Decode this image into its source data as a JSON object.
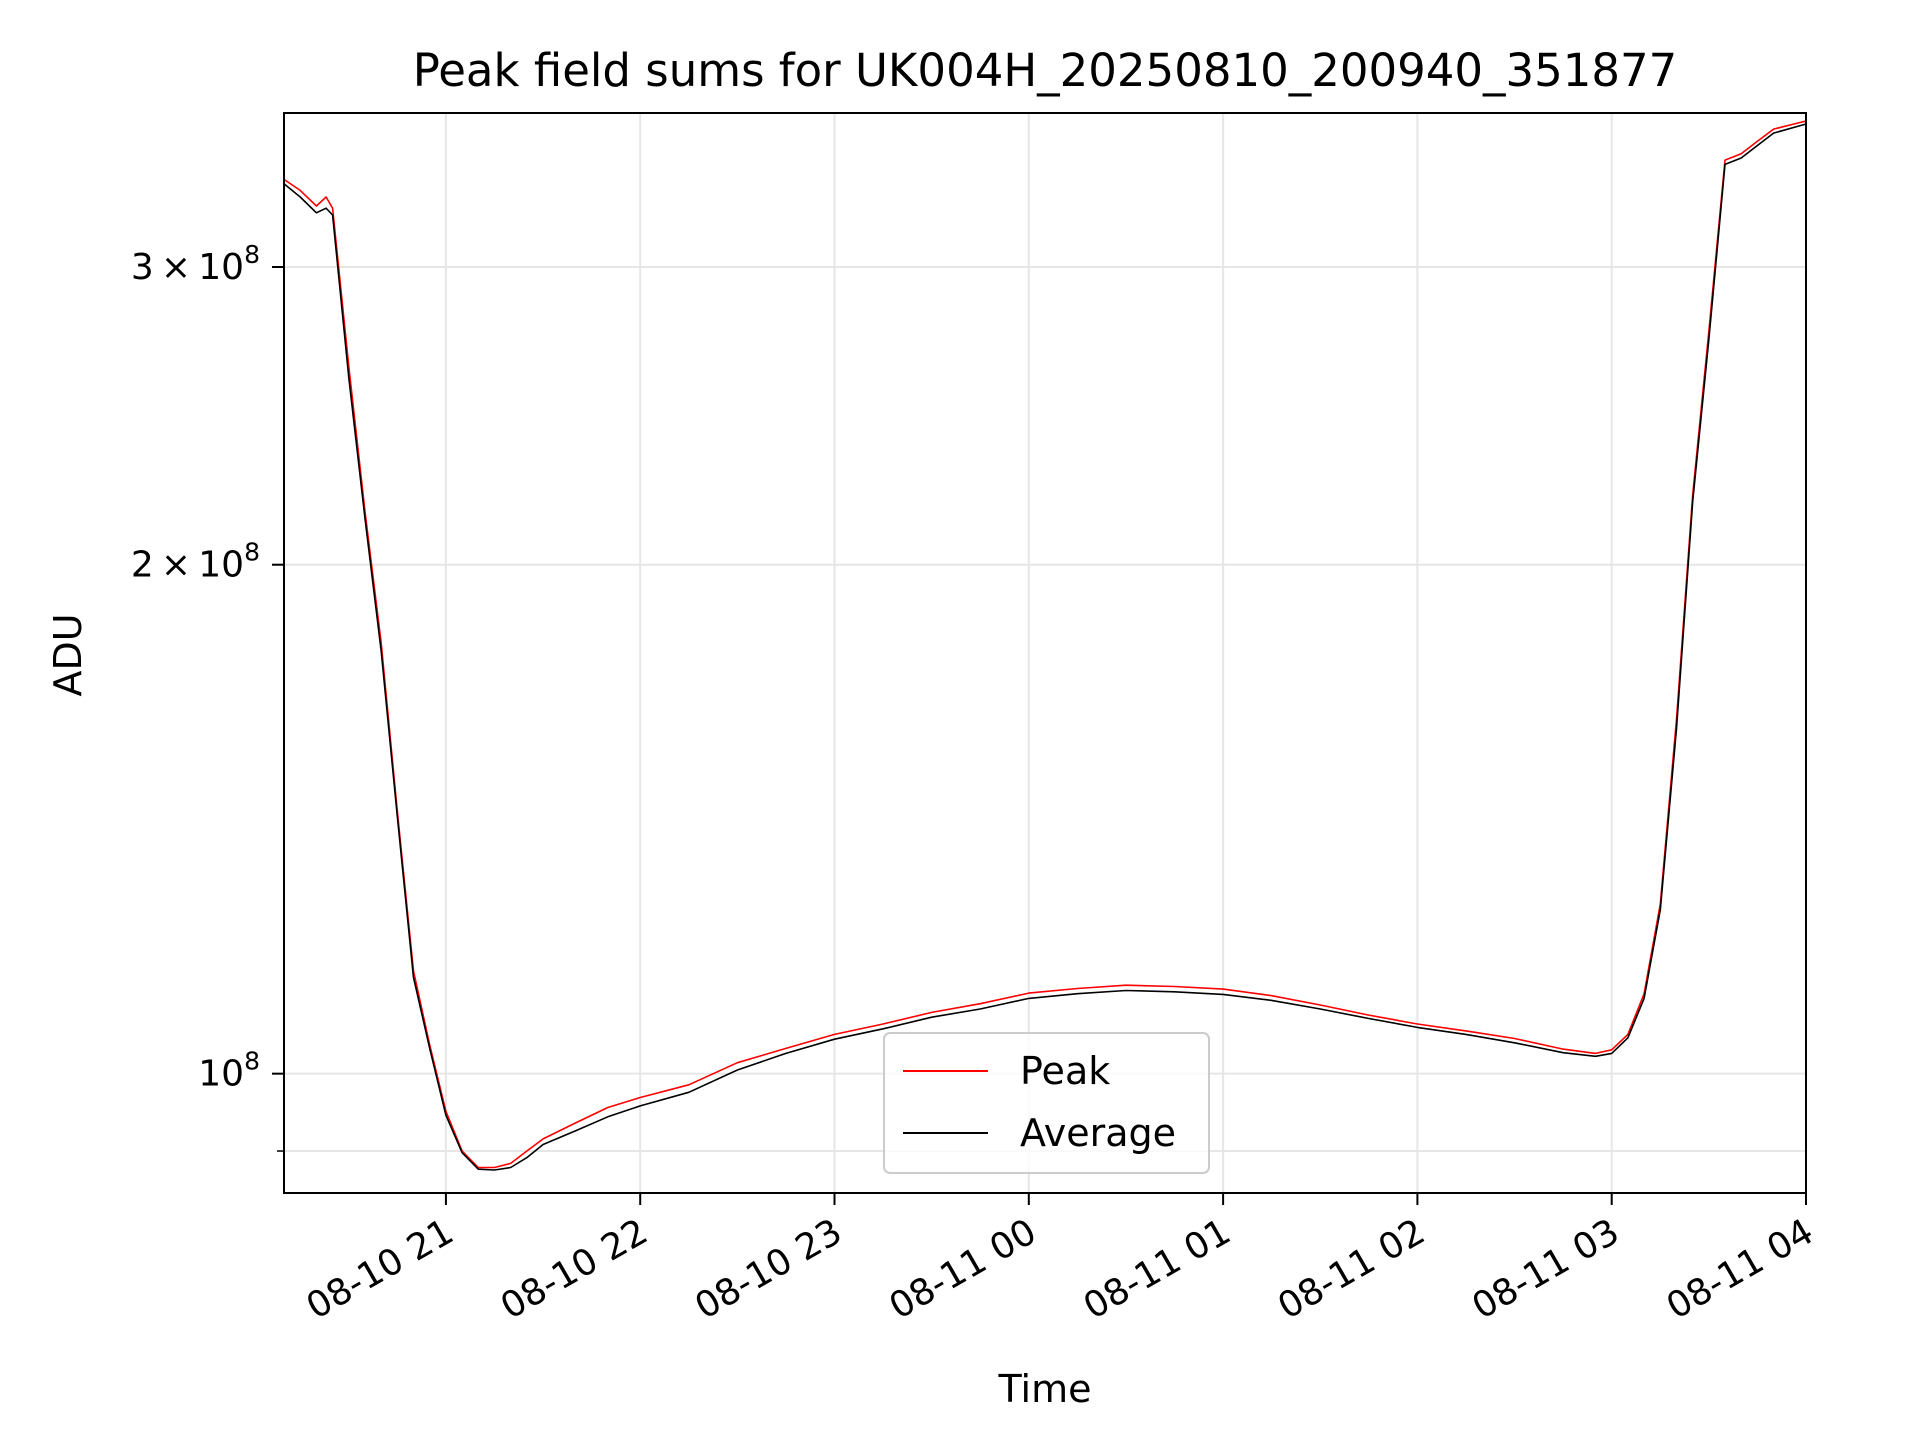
{
  "chart_data": {
    "type": "line",
    "title": "Peak field sums for UK004H_20250810_200940_351877",
    "xlabel": "Time",
    "ylabel": "ADU",
    "y_scale": "log",
    "grid": true,
    "legend_placement": "lower-center",
    "xlim": [
      "2025-08-10 20:10",
      "2025-08-11 04:00"
    ],
    "ylim": [
      85000000,
      370000000
    ],
    "x_ticks": [
      {
        "t": "2025-08-10 21:00",
        "label": "08-10 21"
      },
      {
        "t": "2025-08-10 22:00",
        "label": "08-10 22"
      },
      {
        "t": "2025-08-10 23:00",
        "label": "08-10 23"
      },
      {
        "t": "2025-08-11 00:00",
        "label": "08-11 00"
      },
      {
        "t": "2025-08-11 01:00",
        "label": "08-11 01"
      },
      {
        "t": "2025-08-11 02:00",
        "label": "08-11 02"
      },
      {
        "t": "2025-08-11 03:00",
        "label": "08-11 03"
      },
      {
        "t": "2025-08-11 04:00",
        "label": "08-11 04"
      }
    ],
    "y_major_ticks": [
      {
        "value": 100000000,
        "mantissa": "",
        "exponent": "8"
      },
      {
        "value": 200000000,
        "mantissa": "2",
        "exponent": "8"
      },
      {
        "value": 300000000,
        "mantissa": "3",
        "exponent": "8"
      }
    ],
    "y_minor_ticks": [
      90000000
    ],
    "series": [
      {
        "name": "Peak",
        "color": "#ff0000",
        "points": [
          [
            "2025-08-10 20:10",
            338000000
          ],
          [
            "2025-08-10 20:15",
            333000000
          ],
          [
            "2025-08-10 20:20",
            326000000
          ],
          [
            "2025-08-10 20:23",
            330000000
          ],
          [
            "2025-08-10 20:25",
            325000000
          ],
          [
            "2025-08-10 20:30",
            262000000
          ],
          [
            "2025-08-10 20:35",
            215000000
          ],
          [
            "2025-08-10 20:40",
            180000000
          ],
          [
            "2025-08-10 20:45",
            143000000
          ],
          [
            "2025-08-10 20:50",
            115000000
          ],
          [
            "2025-08-10 20:55",
            104000000
          ],
          [
            "2025-08-10 21:00",
            95000000
          ],
          [
            "2025-08-10 21:05",
            90000000
          ],
          [
            "2025-08-10 21:10",
            88000000
          ],
          [
            "2025-08-10 21:15",
            88000000
          ],
          [
            "2025-08-10 21:20",
            88500000
          ],
          [
            "2025-08-10 21:25",
            90000000
          ],
          [
            "2025-08-10 21:30",
            91500000
          ],
          [
            "2025-08-10 21:40",
            93500000
          ],
          [
            "2025-08-10 21:50",
            95500000
          ],
          [
            "2025-08-10 22:00",
            96800000
          ],
          [
            "2025-08-10 22:15",
            98500000
          ],
          [
            "2025-08-10 22:30",
            101500000
          ],
          [
            "2025-08-10 22:45",
            103500000
          ],
          [
            "2025-08-10 23:00",
            105500000
          ],
          [
            "2025-08-10 23:15",
            107000000
          ],
          [
            "2025-08-10 23:30",
            108700000
          ],
          [
            "2025-08-10 23:45",
            110000000
          ],
          [
            "2025-08-11 00:00",
            111600000
          ],
          [
            "2025-08-11 00:15",
            112300000
          ],
          [
            "2025-08-11 00:30",
            112800000
          ],
          [
            "2025-08-11 00:45",
            112600000
          ],
          [
            "2025-08-11 01:00",
            112200000
          ],
          [
            "2025-08-11 01:15",
            111200000
          ],
          [
            "2025-08-11 01:30",
            109800000
          ],
          [
            "2025-08-11 01:45",
            108300000
          ],
          [
            "2025-08-11 02:00",
            107000000
          ],
          [
            "2025-08-11 02:15",
            106000000
          ],
          [
            "2025-08-11 02:30",
            104900000
          ],
          [
            "2025-08-11 02:45",
            103400000
          ],
          [
            "2025-08-11 02:55",
            102800000
          ],
          [
            "2025-08-11 03:00",
            103300000
          ],
          [
            "2025-08-11 03:05",
            105500000
          ],
          [
            "2025-08-11 03:10",
            111500000
          ],
          [
            "2025-08-11 03:15",
            126000000
          ],
          [
            "2025-08-11 03:20",
            162000000
          ],
          [
            "2025-08-11 03:25",
            220000000
          ],
          [
            "2025-08-11 03:30",
            275000000
          ],
          [
            "2025-08-11 03:35",
            347000000
          ],
          [
            "2025-08-11 03:40",
            350000000
          ],
          [
            "2025-08-11 03:45",
            356000000
          ],
          [
            "2025-08-11 03:50",
            362000000
          ],
          [
            "2025-08-11 04:00",
            366000000
          ]
        ]
      },
      {
        "name": "Average",
        "color": "#000000",
        "points": [
          [
            "2025-08-10 20:10",
            336000000
          ],
          [
            "2025-08-10 20:15",
            330000000
          ],
          [
            "2025-08-10 20:20",
            323000000
          ],
          [
            "2025-08-10 20:23",
            325000000
          ],
          [
            "2025-08-10 20:25",
            322000000
          ],
          [
            "2025-08-10 20:30",
            258000000
          ],
          [
            "2025-08-10 20:35",
            213000000
          ],
          [
            "2025-08-10 20:40",
            178000000
          ],
          [
            "2025-08-10 20:45",
            142000000
          ],
          [
            "2025-08-10 20:50",
            114000000
          ],
          [
            "2025-08-10 20:55",
            103500000
          ],
          [
            "2025-08-10 21:00",
            94500000
          ],
          [
            "2025-08-10 21:05",
            89800000
          ],
          [
            "2025-08-10 21:10",
            87800000
          ],
          [
            "2025-08-10 21:15",
            87700000
          ],
          [
            "2025-08-10 21:20",
            88000000
          ],
          [
            "2025-08-10 21:25",
            89200000
          ],
          [
            "2025-08-10 21:30",
            90800000
          ],
          [
            "2025-08-10 21:40",
            92500000
          ],
          [
            "2025-08-10 21:50",
            94300000
          ],
          [
            "2025-08-10 22:00",
            95700000
          ],
          [
            "2025-08-10 22:15",
            97500000
          ],
          [
            "2025-08-10 22:30",
            100500000
          ],
          [
            "2025-08-10 22:45",
            102800000
          ],
          [
            "2025-08-10 23:00",
            104800000
          ],
          [
            "2025-08-10 23:15",
            106300000
          ],
          [
            "2025-08-10 23:30",
            108000000
          ],
          [
            "2025-08-10 23:45",
            109200000
          ],
          [
            "2025-08-11 00:00",
            110800000
          ],
          [
            "2025-08-11 00:15",
            111500000
          ],
          [
            "2025-08-11 00:30",
            112000000
          ],
          [
            "2025-08-11 00:45",
            111800000
          ],
          [
            "2025-08-11 01:00",
            111400000
          ],
          [
            "2025-08-11 01:15",
            110500000
          ],
          [
            "2025-08-11 01:30",
            109200000
          ],
          [
            "2025-08-11 01:45",
            107800000
          ],
          [
            "2025-08-11 02:00",
            106500000
          ],
          [
            "2025-08-11 02:15",
            105500000
          ],
          [
            "2025-08-11 02:30",
            104300000
          ],
          [
            "2025-08-11 02:45",
            102900000
          ],
          [
            "2025-08-11 02:55",
            102400000
          ],
          [
            "2025-08-11 03:00",
            102800000
          ],
          [
            "2025-08-11 03:05",
            105000000
          ],
          [
            "2025-08-11 03:10",
            110800000
          ],
          [
            "2025-08-11 03:15",
            125000000
          ],
          [
            "2025-08-11 03:20",
            160000000
          ],
          [
            "2025-08-11 03:25",
            218000000
          ],
          [
            "2025-08-11 03:30",
            272000000
          ],
          [
            "2025-08-11 03:35",
            345000000
          ],
          [
            "2025-08-11 03:40",
            348000000
          ],
          [
            "2025-08-11 03:45",
            354000000
          ],
          [
            "2025-08-11 03:50",
            360000000
          ],
          [
            "2025-08-11 04:00",
            364500000
          ]
        ]
      }
    ]
  }
}
